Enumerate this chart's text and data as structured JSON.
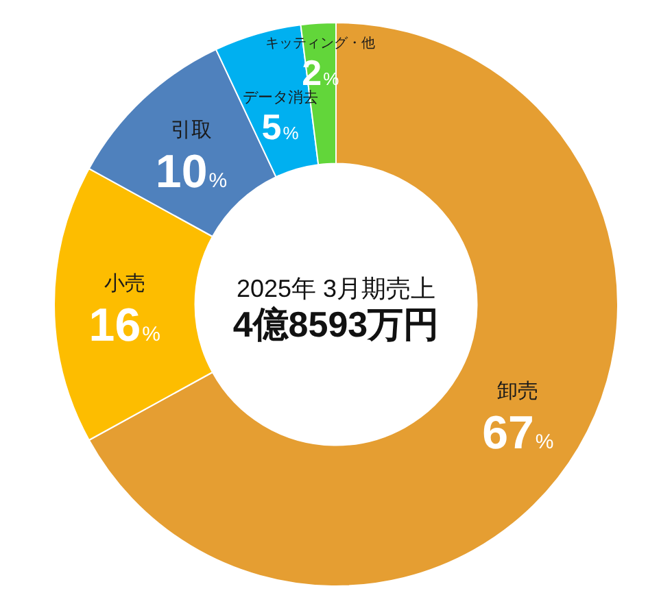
{
  "chart_data": {
    "type": "donut",
    "categories": [
      "卸売",
      "小売",
      "引取",
      "データ消去",
      "キッティング・他"
    ],
    "values": [
      67,
      16,
      10,
      5,
      2
    ],
    "colors": [
      "#e59e32",
      "#fdbd00",
      "#4f81bd",
      "#00b0f0",
      "#62d63a"
    ],
    "value_labels": [
      "67%",
      "16%",
      "10%",
      "5%",
      "2%"
    ],
    "annotations": [
      "2025年 3月期売上",
      "4億8593万円"
    ],
    "legend": false
  }
}
